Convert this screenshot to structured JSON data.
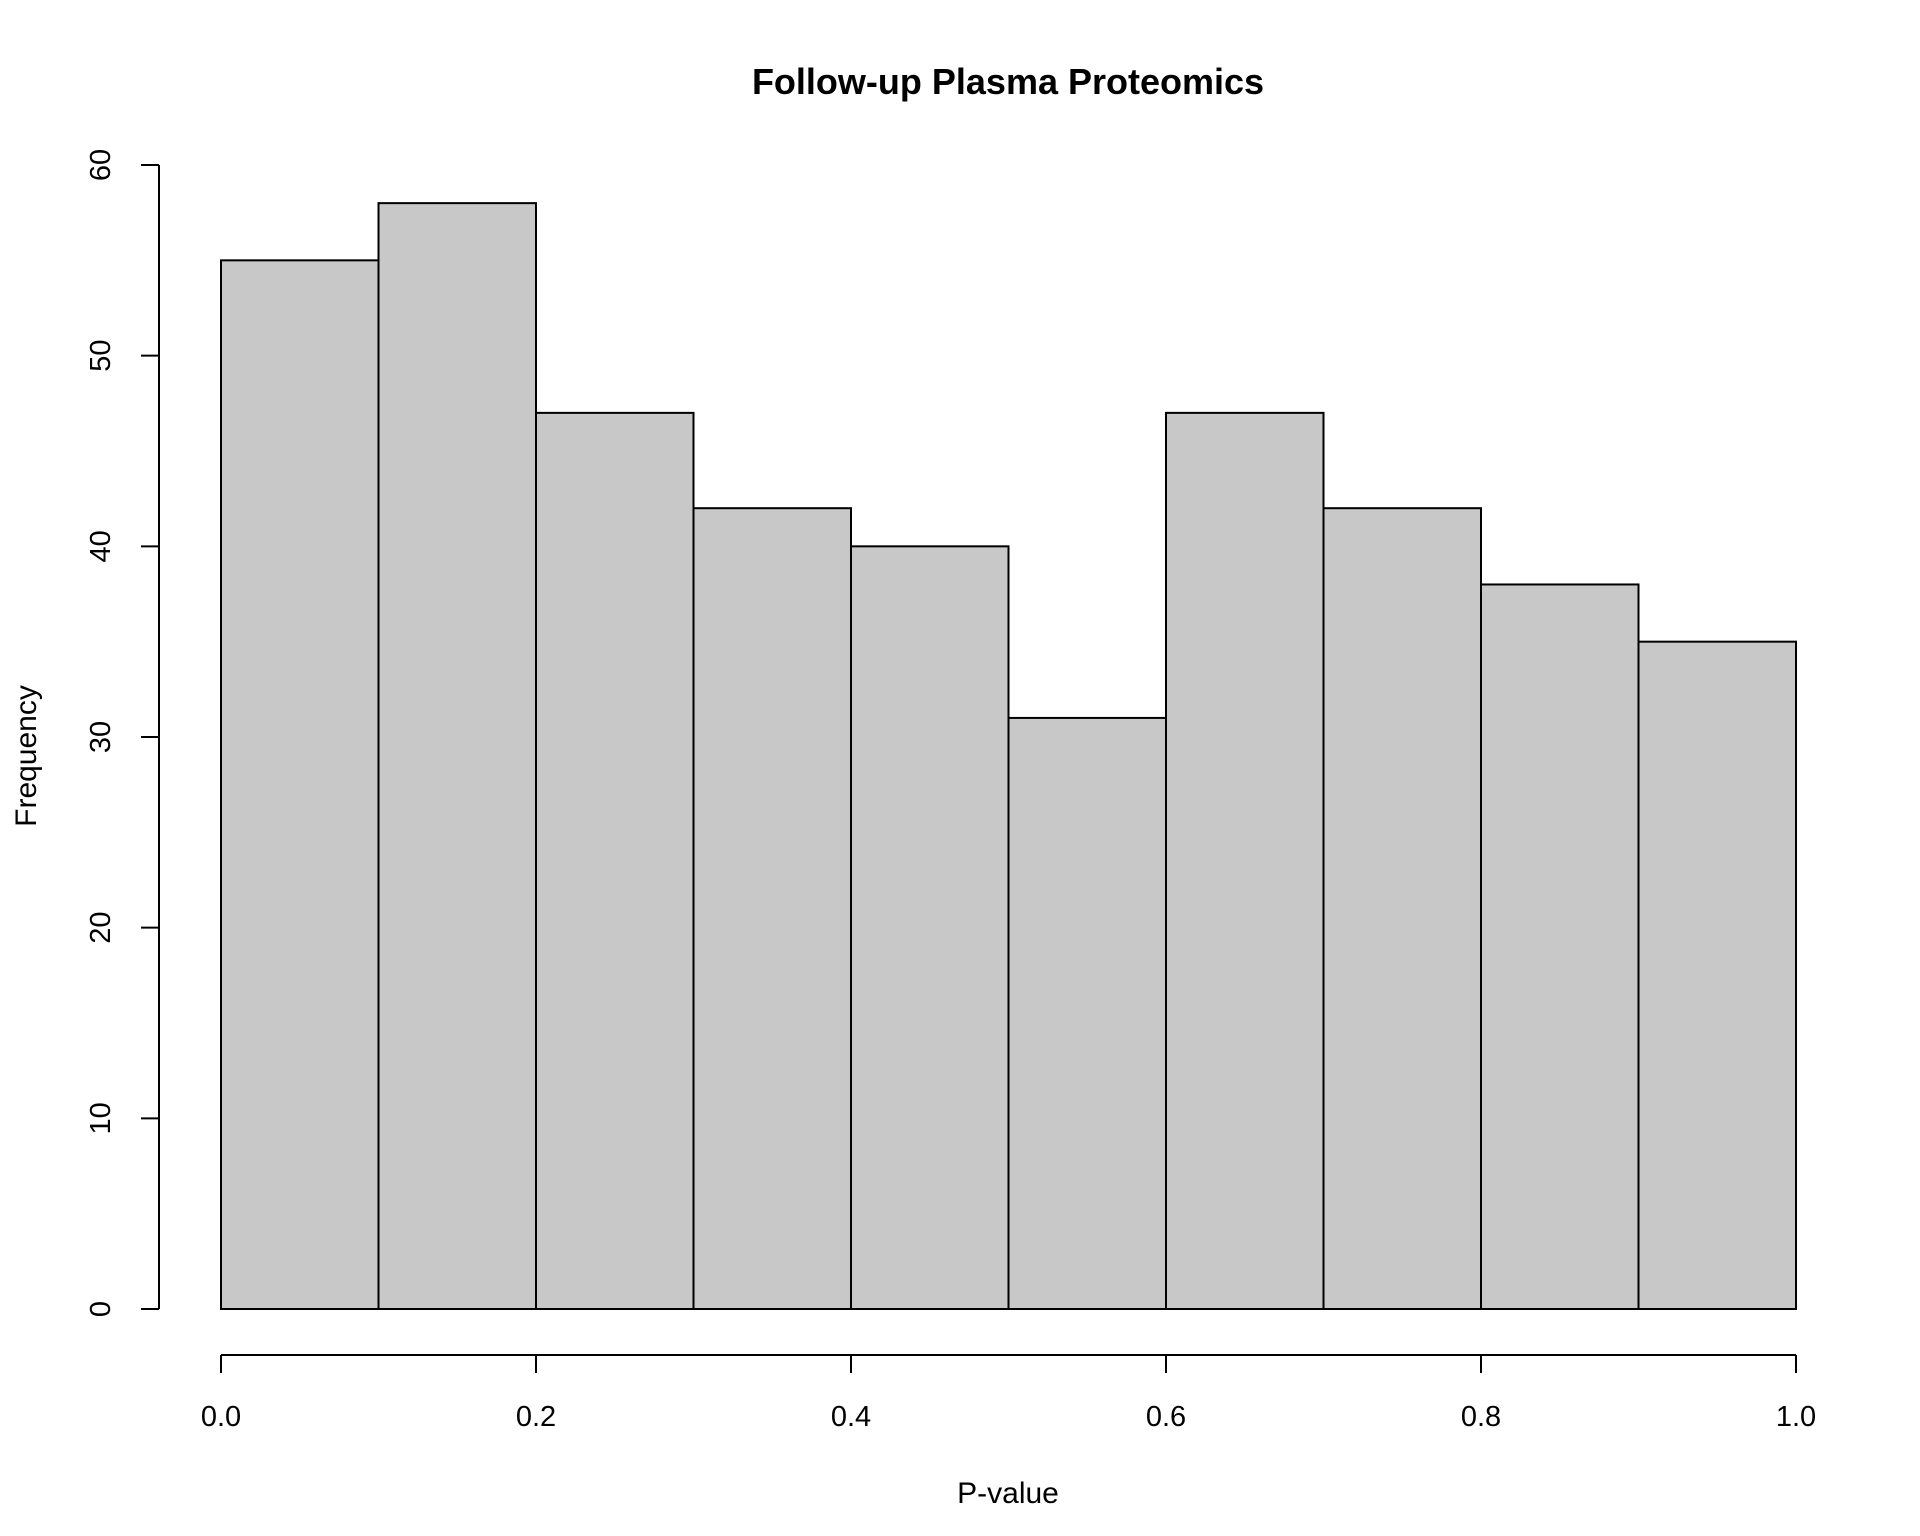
{
  "chart_data": {
    "type": "bar",
    "title": "Follow-up Plasma Proteomics",
    "xlabel": "P-value",
    "ylabel": "Frequency",
    "bins": [
      {
        "x0": 0.0,
        "x1": 0.1,
        "count": 55
      },
      {
        "x0": 0.1,
        "x1": 0.2,
        "count": 58
      },
      {
        "x0": 0.2,
        "x1": 0.3,
        "count": 47
      },
      {
        "x0": 0.3,
        "x1": 0.4,
        "count": 42
      },
      {
        "x0": 0.4,
        "x1": 0.5,
        "count": 40
      },
      {
        "x0": 0.5,
        "x1": 0.6,
        "count": 31
      },
      {
        "x0": 0.6,
        "x1": 0.7,
        "count": 47
      },
      {
        "x0": 0.7,
        "x1": 0.8,
        "count": 42
      },
      {
        "x0": 0.8,
        "x1": 0.9,
        "count": 38
      },
      {
        "x0": 0.9,
        "x1": 1.0,
        "count": 35
      }
    ],
    "xlim": [
      0,
      1
    ],
    "ylim": [
      0,
      60
    ],
    "x_ticks": [
      0.0,
      0.2,
      0.4,
      0.6,
      0.8,
      1.0
    ],
    "x_tick_labels": [
      "0.0",
      "0.2",
      "0.4",
      "0.6",
      "0.8",
      "1.0"
    ],
    "y_ticks": [
      0,
      10,
      20,
      30,
      40,
      50,
      60
    ],
    "y_tick_labels": [
      "0",
      "10",
      "20",
      "30",
      "40",
      "50",
      "60"
    ],
    "grid": false,
    "bar_color": "#c8c8c8",
    "edge_color": "#000000"
  }
}
